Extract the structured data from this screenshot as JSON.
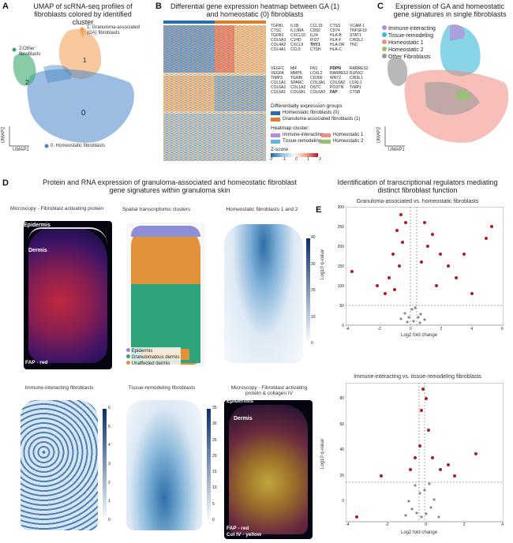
{
  "panelA": {
    "label": "A",
    "title": "UMAP of scRNA-seq profiles of fibroblasts colored by identified cluster",
    "cluster1": "1: Granuloma-associated (GA) fibroblasts",
    "cluster1_num": "1",
    "cluster2": "2:Other fibroblasts",
    "cluster2_num": "2",
    "cluster0": "0: Homeostatic fibroblasts",
    "cluster0_num": "0",
    "xlabel": "UMAP1",
    "ylabel": "UMAP2",
    "colors": {
      "cluster1": "#f39c4e",
      "cluster2": "#3aa76d",
      "cluster0": "#4a86c8"
    }
  },
  "panelB": {
    "label": "B",
    "title": "Differential gene expression heatmap between GA (1) and homeostatic (0) fibroblasts",
    "genes_top": [
      "TGFB1",
      "IL1B",
      "CCL19",
      "CTSS",
      "VCAM-1",
      "CTSC",
      "IL13RA",
      "CD82",
      "CD74",
      "TNFSF10",
      "TGFB3",
      "CXCL10",
      "IL24",
      "HLA-B",
      "STAT1",
      "COL5A3",
      "C1HD",
      "IFI27",
      "HLA-F",
      "CHI3L2",
      "COL4A2",
      "CXCL9",
      "THY1",
      "HLA-DR",
      "TNC",
      "COL4A1",
      "CCL5",
      "CTSH",
      "HLA-C",
      ""
    ],
    "genes_bottom": [
      "VEGFC",
      "MIF",
      "FN1",
      "PDPN",
      "RARRES2",
      "VEGFA",
      "MMP9",
      "LOXL2",
      "RARRES1",
      "RUNX2",
      "TIMP3",
      "TGRBI",
      "CD300",
      "WNT2",
      "CHI3L1",
      "COL1A1",
      "SPARC",
      "COL3A1",
      "COL5A2",
      "LOXL1",
      "COL6A2",
      "COL1A2",
      "OSTC",
      "POSTN",
      "TIMP1",
      "COL5A1",
      "COL6A1",
      "COL6A3",
      "FAP",
      "CTSB"
    ],
    "legend_title": "Differentially expression groups",
    "groups": [
      "Homeostatic fibroblasts (0)",
      "Granuloma-associated fibroblasts (1)"
    ],
    "cluster_title": "Heatmap cluster:",
    "clusters": [
      "Immune-interacting",
      "Homeostatic 1",
      "Tissue-remodeling",
      "Homeostatic 2"
    ],
    "zscore_title": "Z-score",
    "zscore_ticks": [
      "-2",
      "-1",
      "0",
      "1",
      "2"
    ],
    "colors": {
      "homeo": "#2b6cb0",
      "ga": "#e07b2a",
      "immune": "#b98ad9",
      "homeo1": "#f28b82",
      "remodel": "#5fb6e8",
      "homeo2": "#8fc66a"
    }
  },
  "panelC": {
    "label": "C",
    "title": "Expression of GA and homeostatic gene signatures in single fibroblasts",
    "legend": [
      "Immune-interacting",
      "Tissue-remodeling",
      "Homeostatic 1",
      "Homeostatic 2",
      "Other Fibroblasts"
    ],
    "legend_colors": [
      "#b98ad9",
      "#36b8d6",
      "#f28b82",
      "#8fc66a",
      "#9a9a9a"
    ],
    "xlabel": "UMAP1",
    "ylabel": "UMAP2"
  },
  "panelD": {
    "label": "D",
    "title": "Protein and RNA expression of granuloma-associated and homeostatic fibroblast gene signatures within granuloma skin",
    "micro1_title": "Microscopy - Fibroblast activating protein",
    "epidermis": "Epidermis",
    "dermis": "Dermis",
    "fap_red": "FAP - red",
    "spatial_title": "Spatial transcriptomic clusters",
    "spatial_legend": [
      "Epidermis",
      "Granulomatous dermis",
      "Unaffected dermis"
    ],
    "spatial_colors": [
      "#8e8ed6",
      "#2fa37a",
      "#e0913a"
    ],
    "homeo_title": "Homeostatic fibroblasts 1 and 2",
    "homeo_ticks": [
      "40",
      "30",
      "20",
      "10",
      "0"
    ],
    "immune_title": "Immune-interacting fibroblasts",
    "immune_ticks": [
      "6",
      "5",
      "4",
      "3",
      "2",
      "1",
      "0"
    ],
    "tissue_title": "Tissue-remodeling fibroblasts",
    "tissue_ticks": [
      "35",
      "30",
      "25",
      "20",
      "15",
      "10",
      "5",
      "0"
    ],
    "micro2_title": "Microscopy - Fibroblast activating protein & collagen IV",
    "epidermis2": "Epidermis",
    "dermis2": "Dermis",
    "fap_red2": "FAP - red",
    "col_yellow": "Col IV - yellow"
  },
  "panelE": {
    "label": "E",
    "title": "Identification of transcriptional regulators mediating distinct fibroblast function",
    "plot1_title": "Granuloma-associated vs. homeostatic fibroblasts",
    "plot1_yticks": [
      "300",
      "250",
      "200",
      "150",
      "100",
      "50",
      "0"
    ],
    "plot1_xticks": [
      "-4",
      "-2",
      "0",
      "2",
      "4",
      "6"
    ],
    "plot2_title": "Immune-interacting vs. tissue-remodeling fibroblasts",
    "plot2_yticks": [
      "80",
      "60",
      "40",
      "20",
      "0"
    ],
    "plot2_xticks": [
      "-4",
      "-2",
      "0",
      "2",
      "4"
    ],
    "ylabel": "Log10 q-value",
    "xlabel": "Log2 fold change",
    "colors": {
      "sig": "#b01e1e",
      "nonsig": "#8a8a8a"
    }
  }
}
